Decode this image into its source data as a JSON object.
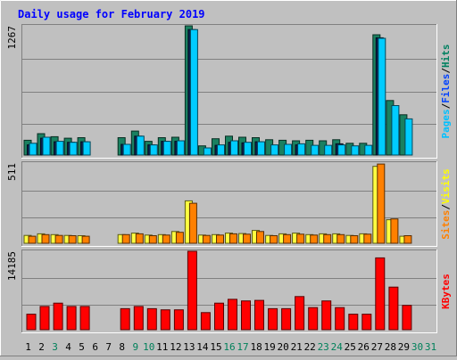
{
  "chart_data": [
    {
      "type": "bar",
      "panel": "hits-files-pages",
      "title": "Daily usage for February 2019",
      "ymax_label": "1267",
      "ylim": [
        0,
        1267
      ],
      "grid": true,
      "right_label": [
        {
          "text": "Pages",
          "color": "#00c0ff"
        },
        {
          "text": "/",
          "color": "#000000"
        },
        {
          "text": "Files",
          "color": "#0040ff"
        },
        {
          "text": "/",
          "color": "#000000"
        },
        {
          "text": "Hits",
          "color": "#008060"
        }
      ],
      "categories": [
        "1",
        "2",
        "3",
        "4",
        "5",
        "6",
        "7",
        "8",
        "9",
        "10",
        "11",
        "12",
        "13",
        "14",
        "15",
        "16",
        "17",
        "18",
        "19",
        "20",
        "21",
        "22",
        "23",
        "24",
        "25",
        "26",
        "27",
        "28",
        "29",
        "30",
        "31"
      ],
      "series": [
        {
          "name": "Hits",
          "color": "#1a8060",
          "values": [
            145,
            210,
            180,
            165,
            170,
            0,
            0,
            170,
            235,
            135,
            170,
            175,
            1267,
            90,
            160,
            185,
            175,
            170,
            150,
            145,
            140,
            145,
            140,
            150,
            115,
            115,
            1180,
            535,
            395,
            0,
            0
          ]
        },
        {
          "name": "Files",
          "color": "#0a2050",
          "values": [
            100,
            165,
            130,
            125,
            130,
            0,
            0,
            105,
            185,
            100,
            135,
            135,
            1230,
            0,
            95,
            125,
            120,
            130,
            0,
            0,
            100,
            0,
            0,
            110,
            0,
            0,
            1150,
            0,
            0,
            0,
            0
          ]
        },
        {
          "name": "Pages",
          "color": "#00ccff",
          "values": [
            115,
            175,
            135,
            125,
            130,
            0,
            0,
            105,
            185,
            100,
            135,
            140,
            1230,
            70,
            100,
            140,
            125,
            130,
            100,
            105,
            110,
            95,
            95,
            100,
            90,
            95,
            1145,
            485,
            355,
            0,
            0
          ]
        }
      ]
    },
    {
      "type": "bar",
      "panel": "visits-sites",
      "ymax_label": "511",
      "ylim": [
        0,
        511
      ],
      "grid": true,
      "right_label": [
        {
          "text": "Sites",
          "color": "#ff8000"
        },
        {
          "text": "/",
          "color": "#000000"
        },
        {
          "text": "Visits",
          "color": "#ffff00"
        }
      ],
      "categories": [
        "1",
        "2",
        "3",
        "4",
        "5",
        "6",
        "7",
        "8",
        "9",
        "10",
        "11",
        "12",
        "13",
        "14",
        "15",
        "16",
        "17",
        "18",
        "19",
        "20",
        "21",
        "22",
        "23",
        "24",
        "25",
        "26",
        "27",
        "28",
        "29",
        "30",
        "31"
      ],
      "series": [
        {
          "name": "Visits",
          "color": "#ffff40",
          "values": [
            50,
            60,
            55,
            50,
            48,
            0,
            0,
            55,
            65,
            52,
            55,
            75,
            270,
            52,
            55,
            65,
            62,
            82,
            50,
            60,
            65,
            55,
            60,
            60,
            50,
            60,
            490,
            150,
            45,
            0,
            0
          ]
        },
        {
          "name": "Sites",
          "color": "#ff8000",
          "values": [
            45,
            55,
            50,
            48,
            45,
            0,
            0,
            55,
            60,
            48,
            52,
            70,
            255,
            50,
            52,
            60,
            58,
            75,
            48,
            55,
            58,
            52,
            55,
            55,
            48,
            58,
            505,
            155,
            48,
            0,
            0
          ]
        }
      ]
    },
    {
      "type": "bar",
      "panel": "kbytes",
      "ymax_label": "14185",
      "ylim": [
        0,
        14185
      ],
      "grid": true,
      "right_label": [
        {
          "text": "KBytes",
          "color": "#ff0000"
        }
      ],
      "categories": [
        "1",
        "2",
        "3",
        "4",
        "5",
        "6",
        "7",
        "8",
        "9",
        "10",
        "11",
        "12",
        "13",
        "14",
        "15",
        "16",
        "17",
        "18",
        "19",
        "20",
        "21",
        "22",
        "23",
        "24",
        "25",
        "26",
        "27",
        "28",
        "29",
        "30",
        "31"
      ],
      "series": [
        {
          "name": "KBytes",
          "color": "#ff0000",
          "values": [
            2800,
            4200,
            4800,
            4200,
            4200,
            0,
            0,
            3800,
            4200,
            3800,
            3600,
            3600,
            14185,
            3100,
            4800,
            5500,
            5200,
            5300,
            3800,
            3800,
            6000,
            4000,
            5200,
            4000,
            2800,
            2800,
            13000,
            7700,
            4400,
            0,
            0
          ]
        }
      ]
    }
  ],
  "x_labels": [
    {
      "text": "1",
      "color": "#000000"
    },
    {
      "text": "2",
      "color": "#000000"
    },
    {
      "text": "3",
      "color": "#00805a"
    },
    {
      "text": "4",
      "color": "#000000"
    },
    {
      "text": "5",
      "color": "#000000"
    },
    {
      "text": "6",
      "color": "#000000"
    },
    {
      "text": "7",
      "color": "#000000"
    },
    {
      "text": "8",
      "color": "#000000"
    },
    {
      "text": "9",
      "color": "#00805a"
    },
    {
      "text": "10",
      "color": "#00805a"
    },
    {
      "text": "11",
      "color": "#000000"
    },
    {
      "text": "12",
      "color": "#000000"
    },
    {
      "text": "13",
      "color": "#000000"
    },
    {
      "text": "14",
      "color": "#000000"
    },
    {
      "text": "15",
      "color": "#000000"
    },
    {
      "text": "16",
      "color": "#00805a"
    },
    {
      "text": "17",
      "color": "#00805a"
    },
    {
      "text": "18",
      "color": "#000000"
    },
    {
      "text": "19",
      "color": "#000000"
    },
    {
      "text": "20",
      "color": "#000000"
    },
    {
      "text": "21",
      "color": "#000000"
    },
    {
      "text": "22",
      "color": "#000000"
    },
    {
      "text": "23",
      "color": "#00805a"
    },
    {
      "text": "24",
      "color": "#00805a"
    },
    {
      "text": "25",
      "color": "#000000"
    },
    {
      "text": "26",
      "color": "#000000"
    },
    {
      "text": "27",
      "color": "#000000"
    },
    {
      "text": "28",
      "color": "#000000"
    },
    {
      "text": "29",
      "color": "#000000"
    },
    {
      "text": "30",
      "color": "#00805a"
    },
    {
      "text": "31",
      "color": "#00805a"
    }
  ],
  "colors": {
    "background": "#c0c0c0",
    "plot_background": "#c0c0c0",
    "grid": "#808080",
    "title": "#0000ff",
    "axis_text": "#000000"
  }
}
